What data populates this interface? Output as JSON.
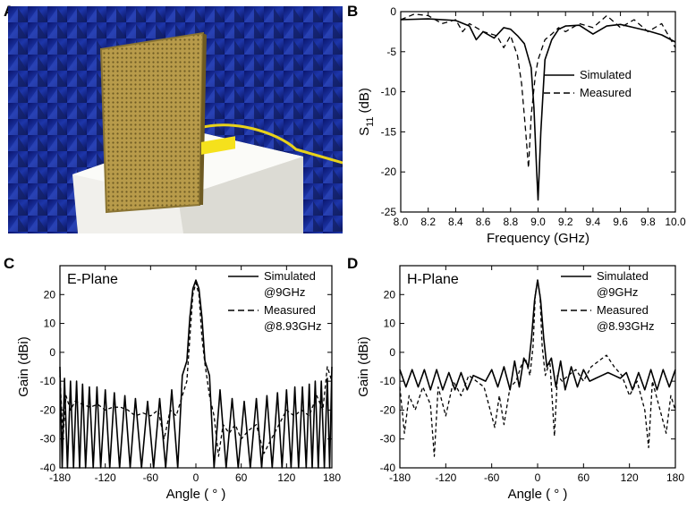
{
  "panel_labels": {
    "a": "A",
    "b": "B",
    "c": "C",
    "d": "D"
  },
  "colors": {
    "axis": "#000000",
    "photo_wall": "#1b2fb0",
    "panel_gold": "#b59a4b",
    "foam": "#f1f0ec"
  },
  "chart_data": [
    {
      "id": "B",
      "type": "line",
      "title": "",
      "xlabel": "Frequency (GHz)",
      "ylabel": "S",
      "ylabel_sub": "11",
      "ylabel_unit": "(dB)",
      "xlim": [
        8.0,
        10.0
      ],
      "ylim": [
        -25,
        0
      ],
      "xticks": [
        8.0,
        8.2,
        8.4,
        8.6,
        8.8,
        9.0,
        9.2,
        9.4,
        9.6,
        9.8,
        10.0
      ],
      "xtick_labels": [
        "8.0",
        "8.2",
        "8.4",
        "8.6",
        "8.8",
        "9.0",
        "9.2",
        "9.4",
        "9.6",
        "9.8",
        "10.0"
      ],
      "yticks": [
        0,
        -5,
        -10,
        -15,
        -20,
        -25
      ],
      "ytick_labels": [
        "0",
        "-5",
        "-10",
        "-15",
        "-20",
        "-25"
      ],
      "legend": "top-right",
      "series": [
        {
          "name": "Simulated",
          "style": "solid",
          "x": [
            8.0,
            8.2,
            8.4,
            8.5,
            8.55,
            8.6,
            8.68,
            8.75,
            8.8,
            8.85,
            8.9,
            8.95,
            8.97,
            8.99,
            9.0,
            9.02,
            9.05,
            9.1,
            9.15,
            9.2,
            9.3,
            9.4,
            9.5,
            9.6,
            9.7,
            9.8,
            9.9,
            10.0
          ],
          "y": [
            -1.0,
            -0.9,
            -1.1,
            -1.8,
            -3.5,
            -2.5,
            -3.3,
            -2.0,
            -2.2,
            -3.0,
            -4.0,
            -7.0,
            -12.0,
            -20.0,
            -23.5,
            -15.0,
            -6.0,
            -3.5,
            -2.2,
            -1.8,
            -1.7,
            -2.8,
            -1.8,
            -1.6,
            -2.0,
            -2.4,
            -2.9,
            -3.8
          ]
        },
        {
          "name": "Measured",
          "style": "dashed",
          "x": [
            8.0,
            8.1,
            8.2,
            8.3,
            8.4,
            8.45,
            8.5,
            8.6,
            8.7,
            8.75,
            8.8,
            8.85,
            8.88,
            8.91,
            8.93,
            8.95,
            8.98,
            9.0,
            9.05,
            9.1,
            9.15,
            9.2,
            9.3,
            9.4,
            9.5,
            9.6,
            9.7,
            9.8,
            9.9,
            10.0
          ],
          "y": [
            -1.0,
            -0.3,
            -0.5,
            -1.5,
            -1.0,
            -2.5,
            -1.5,
            -2.5,
            -3.0,
            -4.5,
            -3.0,
            -5.5,
            -9.0,
            -15.0,
            -19.5,
            -13.0,
            -8.0,
            -6.0,
            -3.5,
            -2.8,
            -2.0,
            -2.5,
            -1.5,
            -2.0,
            -0.5,
            -2.0,
            -1.0,
            -2.5,
            -1.5,
            -4.5
          ]
        }
      ]
    },
    {
      "id": "C",
      "type": "line",
      "title": "E-Plane",
      "xlabel": "Angle ( ° )",
      "ylabel": "Gain (dBi)",
      "xlim": [
        -180,
        180
      ],
      "ylim": [
        -40,
        30
      ],
      "xticks": [
        -180,
        -120,
        -60,
        0,
        60,
        120,
        180
      ],
      "xtick_labels": [
        "-180",
        "-120",
        "-60",
        "0",
        "60",
        "120",
        "180"
      ],
      "yticks": [
        30,
        20,
        10,
        0,
        -10,
        -20,
        -30,
        -40
      ],
      "ytick_labels": [
        "",
        "20",
        "10",
        "0",
        "-10",
        "-20",
        "-30",
        "-40"
      ],
      "legend": "top-right",
      "series": [
        {
          "name": "Simulated",
          "name2": "@9GHz",
          "style": "solid",
          "x": [
            -180,
            -177,
            -174,
            -170,
            -166,
            -162,
            -158,
            -154,
            -150,
            -146,
            -141,
            -136,
            -131,
            -126,
            -120,
            -114,
            -108,
            -101,
            -94,
            -87,
            -80,
            -72,
            -64,
            -56,
            -48,
            -40,
            -32,
            -24,
            -18,
            -12,
            -8,
            -4,
            0,
            4,
            8,
            12,
            18,
            24,
            32,
            40,
            48,
            56,
            64,
            72,
            80,
            87,
            94,
            101,
            108,
            114,
            120,
            126,
            131,
            136,
            141,
            146,
            150,
            154,
            158,
            162,
            166,
            170,
            174,
            177,
            180
          ],
          "y": [
            -5,
            -40,
            -9,
            -40,
            -10,
            -40,
            -10,
            -40,
            -11,
            -40,
            -12,
            -40,
            -12,
            -40,
            -13,
            -40,
            -14,
            -40,
            -15,
            -40,
            -16,
            -40,
            -17,
            -40,
            -16,
            -40,
            -13,
            -40,
            -8,
            -3,
            12,
            22,
            25,
            22,
            12,
            -3,
            -8,
            -40,
            -13,
            -40,
            -16,
            -40,
            -17,
            -40,
            -16,
            -40,
            -15,
            -40,
            -14,
            -40,
            -13,
            -40,
            -12,
            -40,
            -12,
            -40,
            -11,
            -40,
            -10,
            -40,
            -10,
            -40,
            -9,
            -40,
            -5
          ]
        },
        {
          "name": "Measured",
          "name2": "@8.93GHz",
          "style": "dashed",
          "x": [
            -180,
            -176,
            -172,
            -166,
            -160,
            -150,
            -140,
            -130,
            -120,
            -110,
            -100,
            -90,
            -80,
            -70,
            -60,
            -50,
            -42,
            -34,
            -26,
            -18,
            -12,
            -8,
            -4,
            0,
            4,
            8,
            12,
            18,
            24,
            30,
            36,
            44,
            52,
            60,
            70,
            80,
            90,
            100,
            110,
            120,
            130,
            140,
            150,
            160,
            168,
            174,
            180
          ],
          "y": [
            -8,
            -30,
            -15,
            -20,
            -17,
            -18,
            -19,
            -18,
            -20,
            -19,
            -19,
            -20,
            -22,
            -21,
            -22,
            -20,
            -30,
            -20,
            -22,
            -15,
            -10,
            5,
            20,
            24,
            20,
            5,
            -4,
            -15,
            -22,
            -36,
            -25,
            -28,
            -25,
            -30,
            -27,
            -25,
            -35,
            -30,
            -25,
            -20,
            -22,
            -20,
            -22,
            -15,
            -20,
            -5,
            -10
          ]
        }
      ]
    },
    {
      "id": "D",
      "type": "line",
      "title": "H-Plane",
      "xlabel": "Angle ( ° )",
      "ylabel": "Gain (dBi)",
      "xlim": [
        -180,
        180
      ],
      "ylim": [
        -40,
        30
      ],
      "xticks": [
        -180,
        -120,
        -60,
        0,
        60,
        120,
        180
      ],
      "xtick_labels": [
        "-180",
        "-120",
        "-60",
        "0",
        "60",
        "120",
        "180"
      ],
      "yticks": [
        30,
        20,
        10,
        0,
        -10,
        -20,
        -30,
        -40
      ],
      "ytick_labels": [
        "",
        "20",
        "10",
        "0",
        "-10",
        "-20",
        "-30",
        "-40"
      ],
      "legend": "top-right",
      "series": [
        {
          "name": "Simulated",
          "name2": "@9GHz",
          "style": "solid",
          "x": [
            -180,
            -172,
            -164,
            -156,
            -148,
            -140,
            -132,
            -124,
            -116,
            -108,
            -100,
            -92,
            -84,
            -76,
            -68,
            -60,
            -52,
            -44,
            -36,
            -30,
            -24,
            -18,
            -12,
            -8,
            -4,
            0,
            4,
            8,
            12,
            18,
            24,
            30,
            36,
            44,
            52,
            60,
            68,
            76,
            84,
            92,
            100,
            108,
            116,
            124,
            132,
            140,
            148,
            156,
            164,
            172,
            180
          ],
          "y": [
            -6,
            -12,
            -6,
            -12,
            -6,
            -13,
            -6,
            -13,
            -7,
            -13,
            -7,
            -13,
            -8,
            -9,
            -10,
            -6,
            -12,
            -5,
            -13,
            -3,
            -12,
            -2,
            -5,
            5,
            18,
            25,
            18,
            5,
            -5,
            -2,
            -12,
            -3,
            -13,
            -5,
            -12,
            -6,
            -10,
            -9,
            -8,
            -7,
            -8,
            -9,
            -7,
            -13,
            -7,
            -13,
            -6,
            -13,
            -6,
            -12,
            -6
          ]
        },
        {
          "name": "Measured",
          "name2": "@8.93GHz",
          "style": "dashed",
          "x": [
            -180,
            -174,
            -168,
            -160,
            -150,
            -140,
            -135,
            -130,
            -120,
            -110,
            -100,
            -90,
            -80,
            -70,
            -62,
            -56,
            -50,
            -44,
            -36,
            -28,
            -22,
            -16,
            -10,
            -6,
            -3,
            0,
            3,
            6,
            10,
            16,
            22,
            26,
            32,
            40,
            50,
            60,
            70,
            80,
            90,
            100,
            110,
            120,
            130,
            140,
            145,
            150,
            160,
            168,
            174,
            180
          ],
          "y": [
            -12,
            -28,
            -15,
            -20,
            -12,
            -18,
            -36,
            -12,
            -22,
            -10,
            -15,
            -8,
            -10,
            -12,
            -20,
            -26,
            -15,
            -25,
            -12,
            -10,
            -5,
            -2,
            -8,
            2,
            20,
            25,
            20,
            2,
            -8,
            -3,
            -29,
            -8,
            -10,
            -8,
            -6,
            -10,
            -5,
            -3,
            -1,
            -5,
            -8,
            -15,
            -10,
            -20,
            -33,
            -10,
            -20,
            -28,
            -15,
            -20
          ]
        }
      ]
    }
  ]
}
